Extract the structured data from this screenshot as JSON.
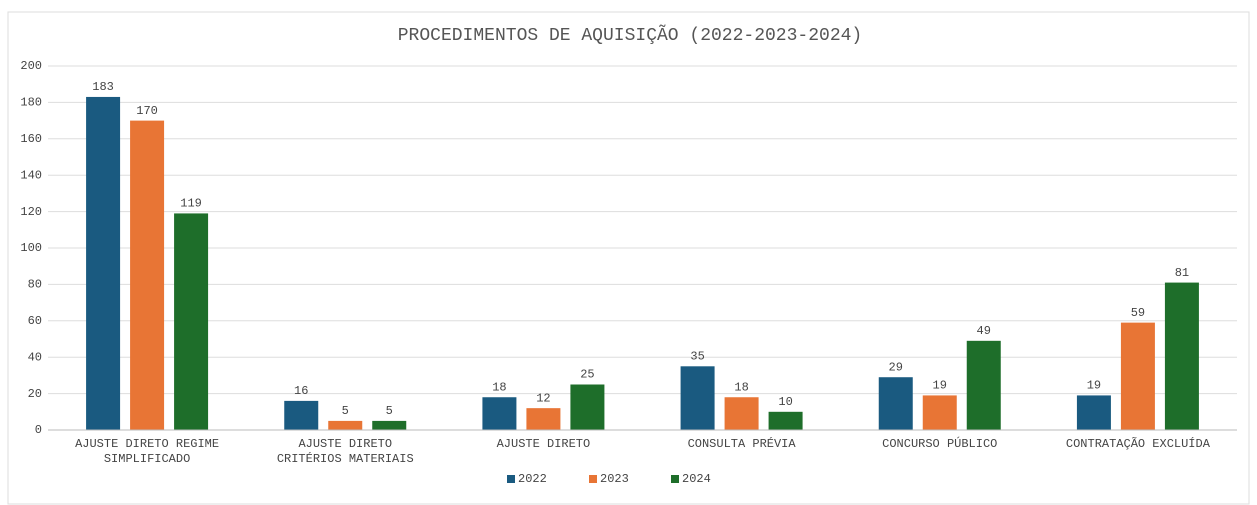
{
  "chart_data": {
    "type": "bar",
    "title": "PROCEDIMENTOS DE AQUISIÇÃO (2022-2023-2024)",
    "categories": [
      "AJUSTE DIRETO REGIME SIMPLIFICADO",
      "AJUSTE DIRETO CRITÉRIOS MATERIAIS",
      "AJUSTE DIRETO",
      "CONSULTA PRÉVIA",
      "CONCURSO PÚBLICO",
      "CONTRATAÇÃO EXCLUÍDA"
    ],
    "series": [
      {
        "name": "2022",
        "color": "#1a5a80",
        "values": [
          183,
          16,
          18,
          35,
          29,
          19
        ]
      },
      {
        "name": "2023",
        "color": "#e87535",
        "values": [
          170,
          5,
          12,
          18,
          19,
          59
        ]
      },
      {
        "name": "2024",
        "color": "#1e6e2a",
        "values": [
          119,
          5,
          25,
          10,
          49,
          81
        ]
      }
    ],
    "ylim": [
      0,
      200
    ],
    "yticks": [
      0,
      20,
      40,
      60,
      80,
      100,
      120,
      140,
      160,
      180,
      200
    ],
    "grid": true,
    "legend": "bottom"
  }
}
